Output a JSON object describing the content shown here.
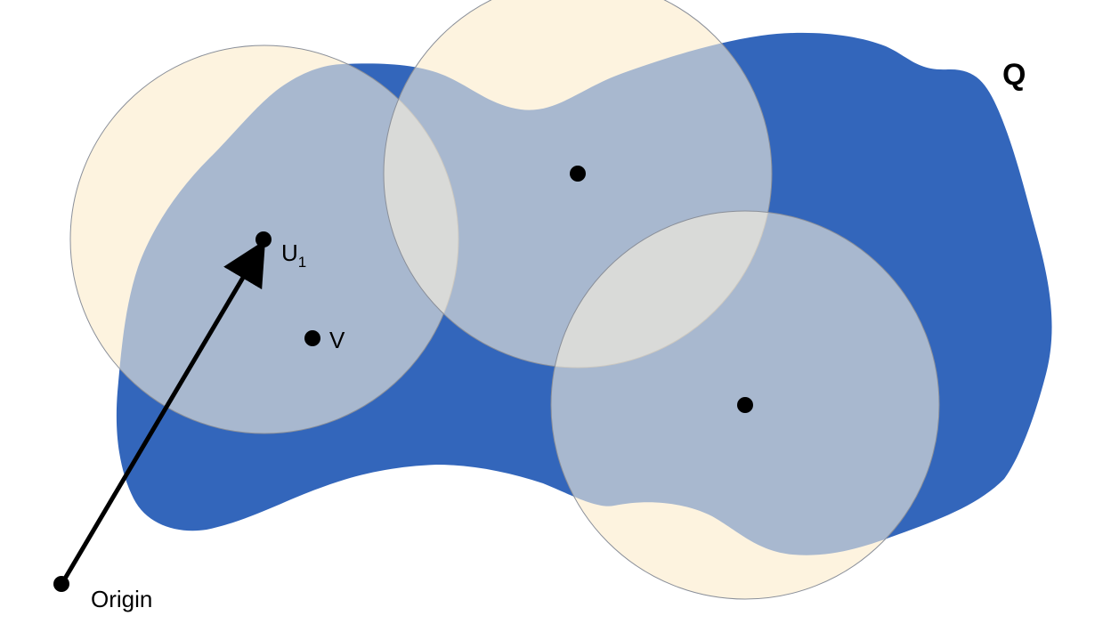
{
  "region": {
    "label": "Q",
    "fill_color": "#3366bb"
  },
  "circles": {
    "fill_color": "#fdf3df",
    "stroke_color": "#8a8f99",
    "overlay_opacity": 0.58
  },
  "points": {
    "u1": {
      "label": "U",
      "subscript": "1"
    },
    "v": {
      "label": "V"
    },
    "origin": {
      "label": "Origin"
    }
  },
  "arrow": {
    "color": "#000000",
    "from": "Origin",
    "to": "U1"
  }
}
